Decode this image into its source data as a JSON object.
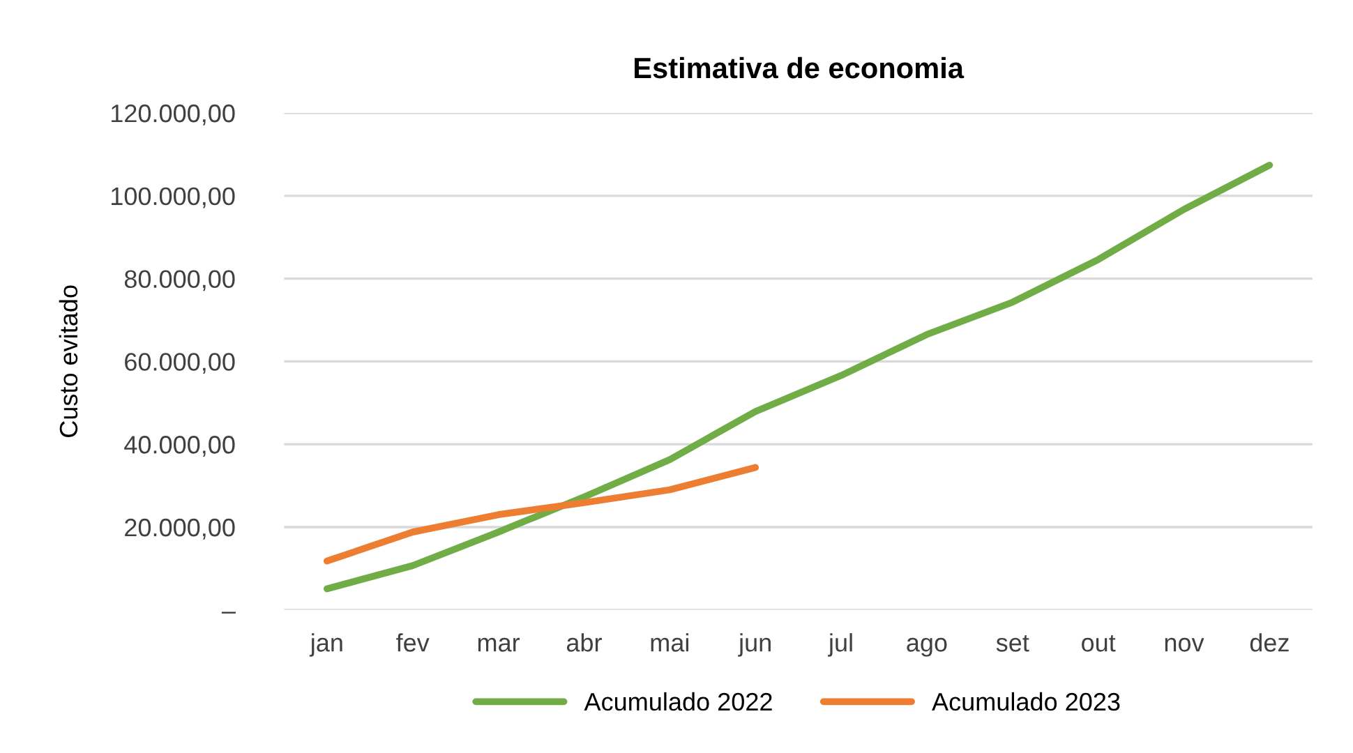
{
  "chart_data": {
    "type": "line",
    "title": "Estimativa de economia",
    "ylabel": "Custo evitado",
    "categories": [
      "jan",
      "fev",
      "mar",
      "abr",
      "mai",
      "jun",
      "jul",
      "ago",
      "set",
      "out",
      "nov",
      "dez"
    ],
    "series": [
      {
        "name": "Acumulado 2022",
        "color": "#70ad47",
        "values": [
          5100,
          10700,
          18800,
          27300,
          36300,
          47900,
          56600,
          66500,
          74300,
          84600,
          96700,
          107400
        ]
      },
      {
        "name": "Acumulado 2023",
        "color": "#ed7d31",
        "values": [
          11800,
          18800,
          23000,
          25900,
          29000,
          34400,
          null,
          null,
          null,
          null,
          null,
          null
        ]
      }
    ],
    "ylim": [
      0,
      120000
    ],
    "yticks": [
      {
        "value": 0,
        "label": "–"
      },
      {
        "value": 20000,
        "label": "20.000,00"
      },
      {
        "value": 40000,
        "label": "40.000,00"
      },
      {
        "value": 60000,
        "label": "60.000,00"
      },
      {
        "value": 80000,
        "label": "80.000,00"
      },
      {
        "value": 100000,
        "label": "100.000,00"
      },
      {
        "value": 120000,
        "label": "120.000,00"
      }
    ],
    "grid": "y",
    "legend": "bottom",
    "marker": "none",
    "line_style": "solid"
  }
}
